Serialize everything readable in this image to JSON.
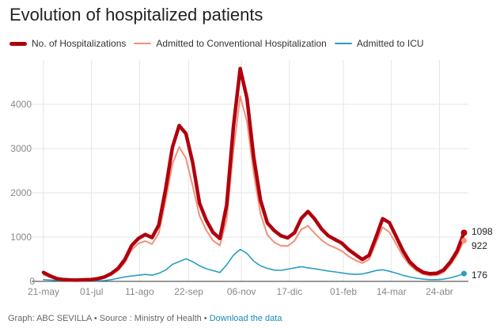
{
  "chart_data": {
    "type": "line",
    "title": "Evolution of hospitalized patients",
    "xlabel": "",
    "ylabel": "",
    "ylim": [
      0,
      5000
    ],
    "yticks": [
      0,
      1000,
      2000,
      3000,
      4000
    ],
    "grid": true,
    "legend_position": "top-left",
    "x_tick_labels": [
      "21-may",
      "01-jul",
      "11-ago",
      "22-sep",
      "06-nov",
      "17-dic",
      "01-feb",
      "14-mar",
      "24-abr"
    ],
    "x_tick_days": [
      0,
      41,
      82,
      124,
      169,
      210,
      256,
      297,
      338
    ],
    "x_day_range": [
      0,
      359
    ],
    "x_step_days": 7,
    "series": [
      {
        "name": "No. of Hospitalizations",
        "color": "#b0000d",
        "end_label": "1098",
        "values": [
          200,
          120,
          60,
          40,
          30,
          30,
          35,
          40,
          60,
          100,
          180,
          300,
          500,
          800,
          950,
          1050,
          1000,
          1300,
          2100,
          3000,
          3450,
          3300,
          2700,
          1800,
          1400,
          1100,
          950,
          1700,
          3500,
          4900,
          4200,
          2800,
          1800,
          1300,
          1150,
          1050,
          1000,
          1100,
          1400,
          1550,
          1400,
          1200,
          1050,
          950,
          850,
          700,
          600,
          500,
          600,
          1000,
          1400,
          1300,
          1000,
          700,
          450,
          300,
          200,
          170,
          180,
          260,
          450,
          700,
          1098
        ]
      },
      {
        "name": "Admitted to Conventional Hospitalization",
        "color": "#f4907a",
        "end_label": "922",
        "values": [
          150,
          90,
          45,
          30,
          25,
          25,
          30,
          35,
          50,
          85,
          150,
          250,
          420,
          700,
          850,
          920,
          860,
          1100,
          1800,
          2600,
          3000,
          2800,
          2200,
          1500,
          1150,
          900,
          800,
          1400,
          3000,
          4250,
          3600,
          2400,
          1500,
          1050,
          900,
          820,
          800,
          900,
          1150,
          1250,
          1100,
          950,
          830,
          750,
          670,
          560,
          480,
          420,
          500,
          850,
          1200,
          1100,
          850,
          580,
          370,
          240,
          160,
          130,
          140,
          210,
          380,
          600,
          922
        ]
      },
      {
        "name": "Admitted to ICU",
        "color": "#2a9dc4",
        "end_label": "176",
        "values": [
          40,
          30,
          20,
          12,
          10,
          10,
          10,
          12,
          15,
          20,
          40,
          70,
          100,
          120,
          140,
          160,
          140,
          180,
          250,
          380,
          450,
          520,
          450,
          350,
          280,
          240,
          200,
          380,
          600,
          720,
          620,
          450,
          350,
          300,
          260,
          250,
          270,
          300,
          330,
          310,
          290,
          260,
          230,
          210,
          190,
          170,
          160,
          170,
          200,
          240,
          260,
          230,
          190,
          140,
          100,
          70,
          50,
          40,
          40,
          50,
          80,
          120,
          176
        ]
      }
    ]
  },
  "legend": {
    "items": [
      {
        "label": "No. of Hospitalizations",
        "color": "#b0000d"
      },
      {
        "label": "Admitted to Conventional Hospitalization",
        "color": "#f4907a"
      },
      {
        "label": "Admitted to ICU",
        "color": "#2a9dc4"
      }
    ]
  },
  "footer": {
    "credit": "Graph: ABC SEVILLA • Source : Ministry of Health •",
    "link": "Download the data"
  }
}
